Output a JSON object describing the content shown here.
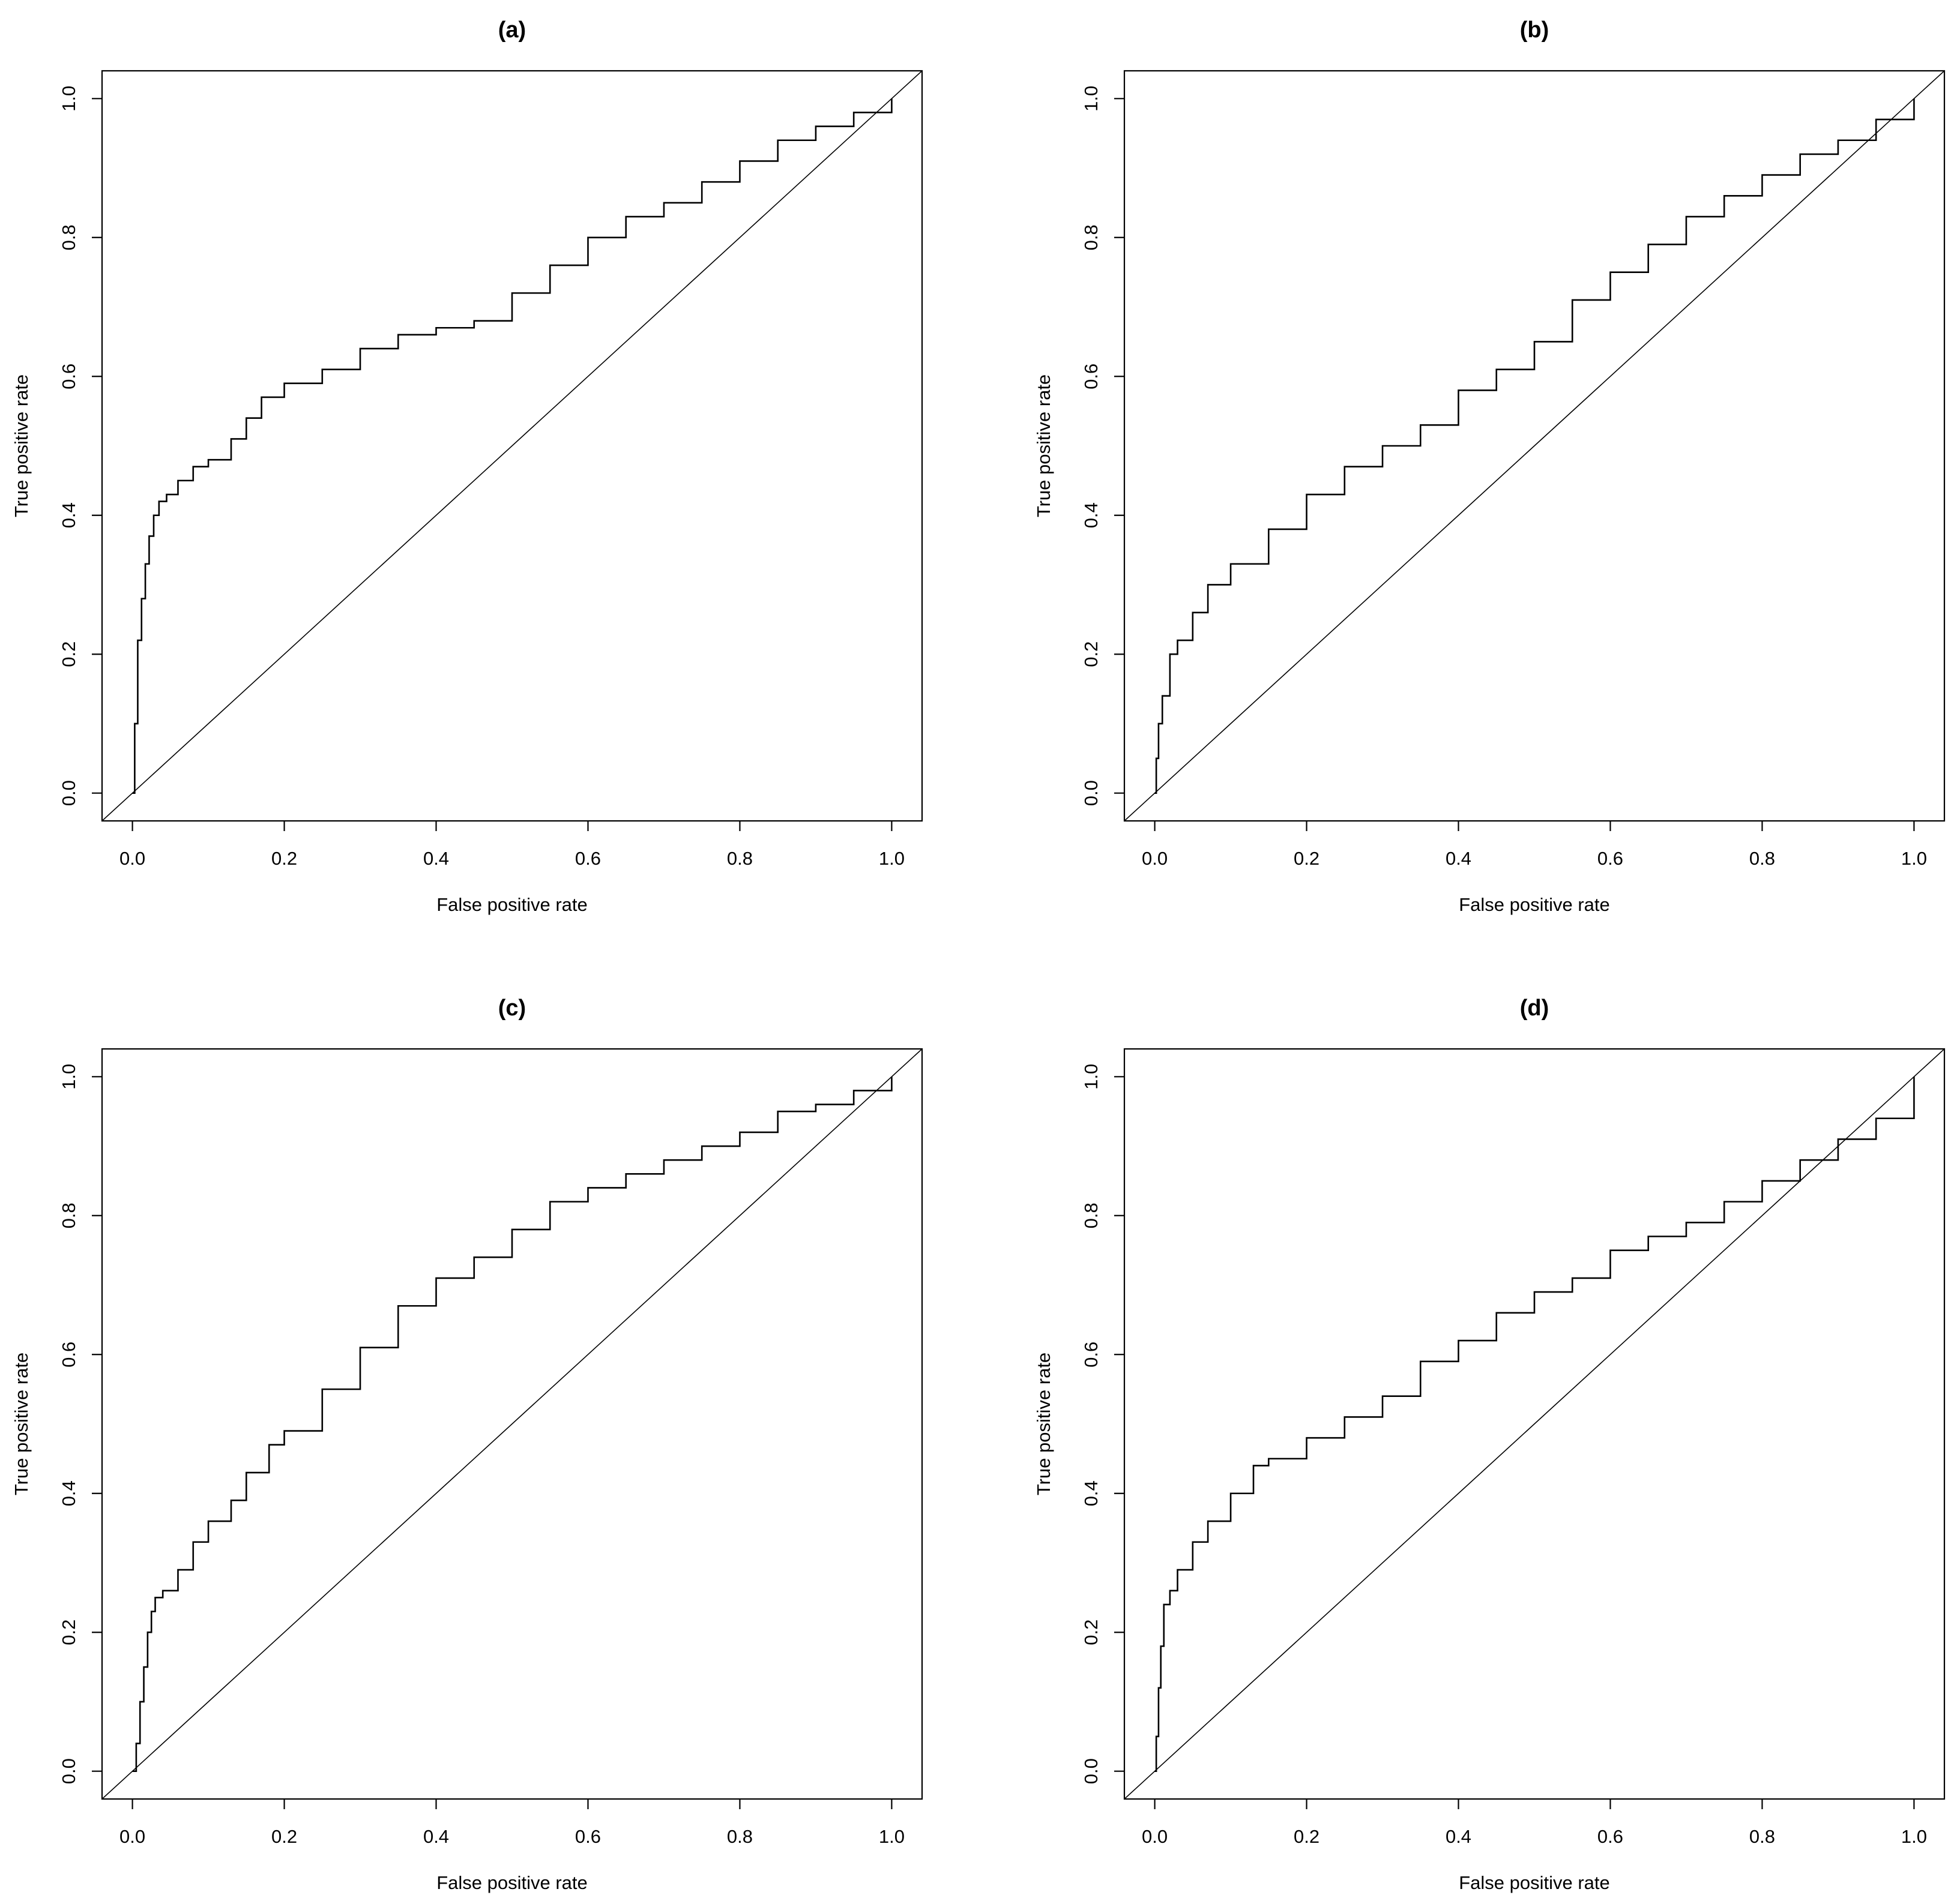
{
  "chart_data": [
    {
      "type": "line",
      "title": "(a)",
      "xlabel": "False positive rate",
      "ylabel": "True positive rate",
      "xlim": [
        0,
        1
      ],
      "ylim": [
        0,
        1
      ],
      "x_ticks": [
        "0.0",
        "0.2",
        "0.4",
        "0.6",
        "0.8",
        "1.0"
      ],
      "y_ticks": [
        "0.0",
        "0.2",
        "0.4",
        "0.6",
        "0.8",
        "1.0"
      ],
      "reference_line": {
        "x": [
          0,
          1
        ],
        "y": [
          0,
          1
        ]
      },
      "series": [
        {
          "x": [
            0.0,
            0.003,
            0.007,
            0.012,
            0.017,
            0.022,
            0.028,
            0.035,
            0.045,
            0.06,
            0.08,
            0.1,
            0.13,
            0.15,
            0.17,
            0.2,
            0.25,
            0.3,
            0.35,
            0.4,
            0.45,
            0.5,
            0.55,
            0.6,
            0.65,
            0.7,
            0.75,
            0.8,
            0.85,
            0.9,
            0.95,
            1.0
          ],
          "y": [
            0.0,
            0.1,
            0.22,
            0.28,
            0.33,
            0.37,
            0.4,
            0.42,
            0.43,
            0.45,
            0.47,
            0.48,
            0.51,
            0.54,
            0.57,
            0.59,
            0.61,
            0.64,
            0.66,
            0.67,
            0.68,
            0.72,
            0.76,
            0.8,
            0.83,
            0.85,
            0.88,
            0.91,
            0.94,
            0.96,
            0.98,
            1.0
          ]
        }
      ]
    },
    {
      "type": "line",
      "title": "(b)",
      "xlabel": "False positive rate",
      "ylabel": "True positive rate",
      "xlim": [
        0,
        1
      ],
      "ylim": [
        0,
        1
      ],
      "x_ticks": [
        "0.0",
        "0.2",
        "0.4",
        "0.6",
        "0.8",
        "1.0"
      ],
      "y_ticks": [
        "0.0",
        "0.2",
        "0.4",
        "0.6",
        "0.8",
        "1.0"
      ],
      "reference_line": {
        "x": [
          0,
          1
        ],
        "y": [
          0,
          1
        ]
      },
      "series": [
        {
          "x": [
            0.0,
            0.002,
            0.005,
            0.01,
            0.02,
            0.03,
            0.05,
            0.07,
            0.1,
            0.15,
            0.2,
            0.25,
            0.3,
            0.35,
            0.4,
            0.45,
            0.5,
            0.55,
            0.6,
            0.65,
            0.7,
            0.75,
            0.8,
            0.85,
            0.9,
            0.95,
            1.0
          ],
          "y": [
            0.0,
            0.05,
            0.1,
            0.14,
            0.2,
            0.22,
            0.26,
            0.3,
            0.33,
            0.38,
            0.43,
            0.47,
            0.5,
            0.53,
            0.58,
            0.61,
            0.65,
            0.71,
            0.75,
            0.79,
            0.83,
            0.86,
            0.89,
            0.92,
            0.94,
            0.97,
            1.0
          ]
        }
      ]
    },
    {
      "type": "line",
      "title": "(c)",
      "xlabel": "False positive rate",
      "ylabel": "True positive rate",
      "xlim": [
        0,
        1
      ],
      "ylim": [
        0,
        1
      ],
      "x_ticks": [
        "0.0",
        "0.2",
        "0.4",
        "0.6",
        "0.8",
        "1.0"
      ],
      "y_ticks": [
        "0.0",
        "0.2",
        "0.4",
        "0.6",
        "0.8",
        "1.0"
      ],
      "reference_line": {
        "x": [
          0,
          1
        ],
        "y": [
          0,
          1
        ]
      },
      "series": [
        {
          "x": [
            0.0,
            0.005,
            0.01,
            0.015,
            0.02,
            0.025,
            0.03,
            0.04,
            0.06,
            0.08,
            0.1,
            0.13,
            0.15,
            0.18,
            0.2,
            0.25,
            0.3,
            0.35,
            0.4,
            0.45,
            0.5,
            0.55,
            0.6,
            0.65,
            0.7,
            0.75,
            0.8,
            0.85,
            0.9,
            0.95,
            1.0
          ],
          "y": [
            0.0,
            0.04,
            0.1,
            0.15,
            0.2,
            0.23,
            0.25,
            0.26,
            0.29,
            0.33,
            0.36,
            0.39,
            0.43,
            0.47,
            0.49,
            0.55,
            0.61,
            0.67,
            0.71,
            0.74,
            0.78,
            0.82,
            0.84,
            0.86,
            0.88,
            0.9,
            0.92,
            0.95,
            0.96,
            0.98,
            1.0
          ]
        }
      ]
    },
    {
      "type": "line",
      "title": "(d)",
      "xlabel": "False positive rate",
      "ylabel": "True positive rate",
      "xlim": [
        0,
        1
      ],
      "ylim": [
        0,
        1
      ],
      "x_ticks": [
        "0.0",
        "0.2",
        "0.4",
        "0.6",
        "0.8",
        "1.0"
      ],
      "y_ticks": [
        "0.0",
        "0.2",
        "0.4",
        "0.6",
        "0.8",
        "1.0"
      ],
      "reference_line": {
        "x": [
          0,
          1
        ],
        "y": [
          0,
          1
        ]
      },
      "series": [
        {
          "x": [
            0.0,
            0.002,
            0.005,
            0.008,
            0.012,
            0.02,
            0.03,
            0.05,
            0.07,
            0.1,
            0.13,
            0.15,
            0.2,
            0.25,
            0.3,
            0.35,
            0.4,
            0.45,
            0.5,
            0.55,
            0.6,
            0.65,
            0.7,
            0.75,
            0.8,
            0.85,
            0.9,
            0.95,
            1.0
          ],
          "y": [
            0.0,
            0.05,
            0.12,
            0.18,
            0.24,
            0.26,
            0.29,
            0.33,
            0.36,
            0.4,
            0.44,
            0.45,
            0.48,
            0.51,
            0.54,
            0.59,
            0.62,
            0.66,
            0.69,
            0.71,
            0.75,
            0.77,
            0.79,
            0.82,
            0.85,
            0.88,
            0.91,
            0.94,
            1.0
          ]
        }
      ]
    }
  ]
}
